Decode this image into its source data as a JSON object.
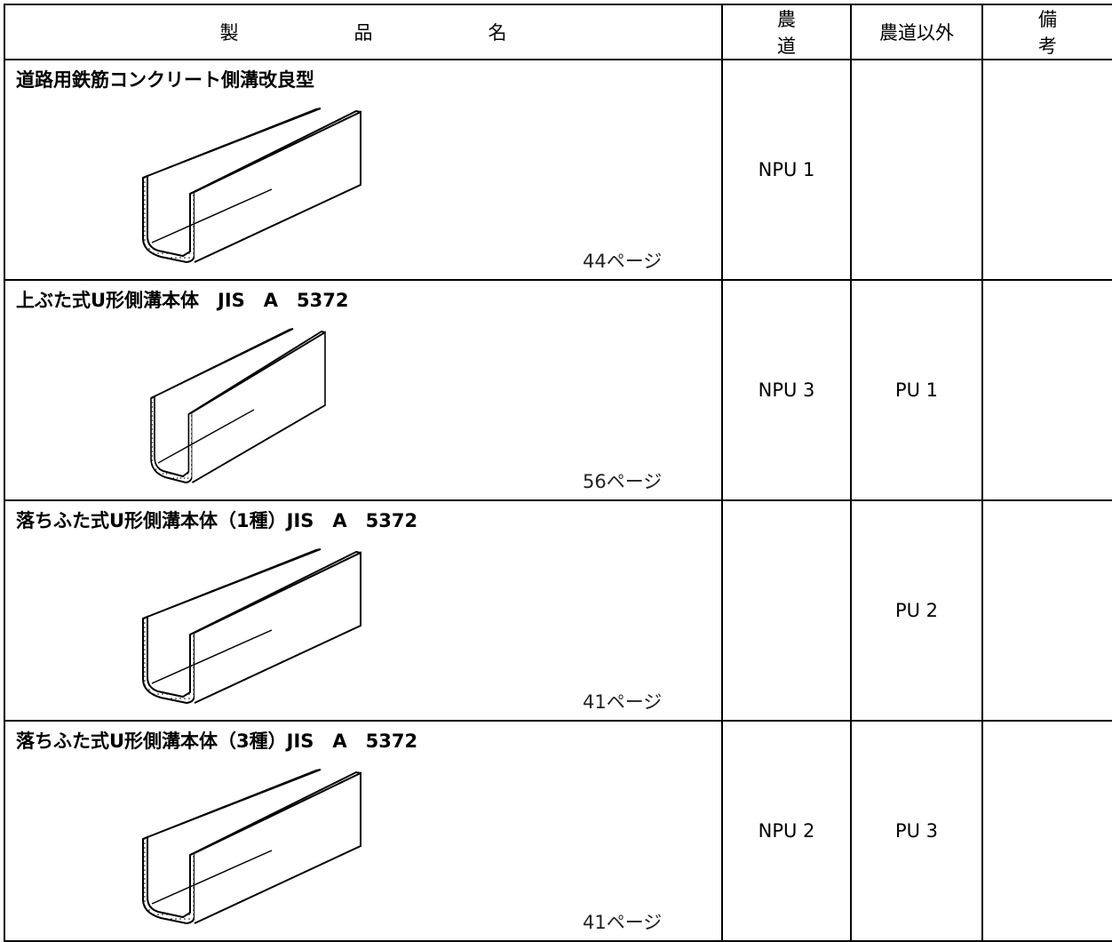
{
  "header": {
    "product": "製品名",
    "farm_road": "農道",
    "non_farm_road": "農道以外",
    "remarks": "備考"
  },
  "rows": [
    {
      "name": "道路用鉄筋コンクリート側溝改良型",
      "page": "44ページ",
      "farm_road": "NPU 1"
    },
    {
      "name": "上ぶた式U形側溝本体　JIS　A　5372",
      "page": "56ページ",
      "farm_road": "NPU 3",
      "non_farm_road": "PU 1"
    },
    {
      "name": "落ちふた式U形側溝本体（1種）JIS　A　5372",
      "page": "41ページ",
      "non_farm_road": "PU 2"
    },
    {
      "name": "落ちふた式U形側溝本体（3種）JIS　A　5372",
      "page": "41ページ",
      "farm_road": "NPU 2",
      "non_farm_road": "PU 3"
    }
  ]
}
